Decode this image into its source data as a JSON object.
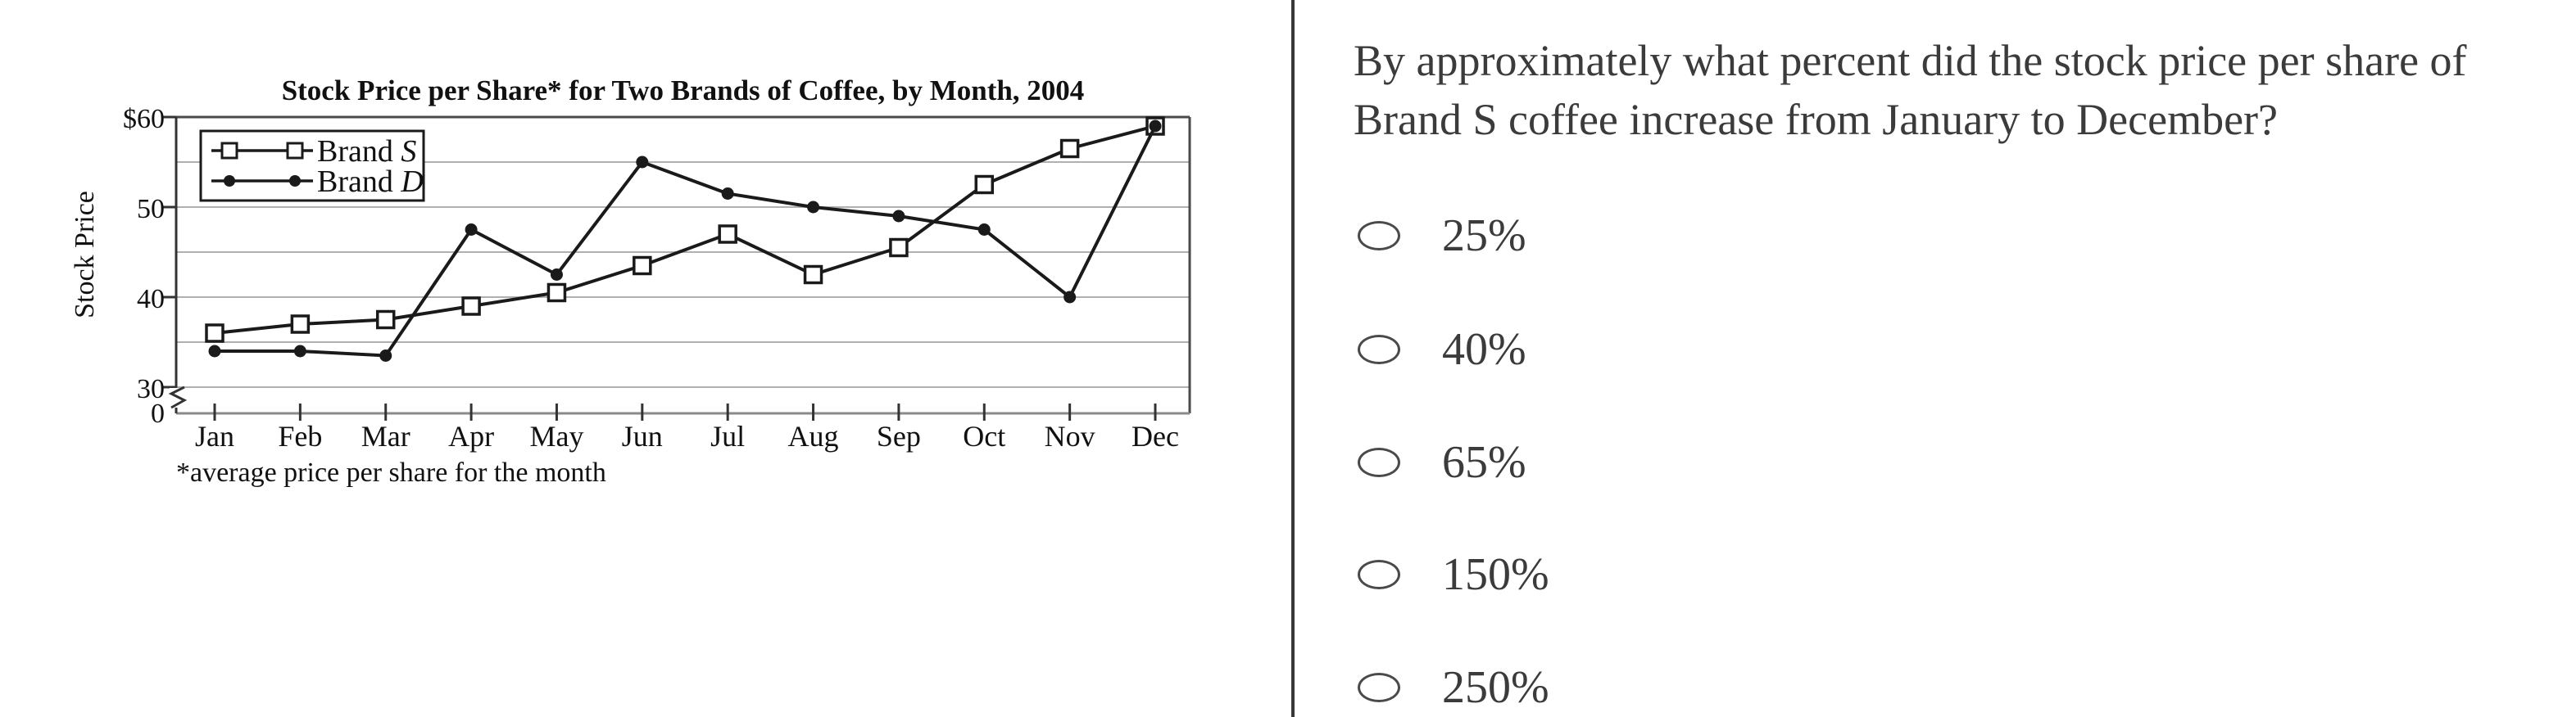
{
  "theme": {
    "text_color": "#3b3b3b",
    "divider_color": "#383838",
    "chart_line_color": "#1a1a1a",
    "gridline_color": "#b0b0b0",
    "background_color": "#ffffff"
  },
  "chart_data": {
    "type": "line",
    "title": "Stock Price per Share* for Two Brands of Coffee, by Month, 2004",
    "ylabel": "Stock Price",
    "footnote": "*average price per share for the month",
    "categories": [
      "Jan",
      "Feb",
      "Mar",
      "Apr",
      "May",
      "Jun",
      "Jul",
      "Aug",
      "Sep",
      "Oct",
      "Nov",
      "Dec"
    ],
    "series": [
      {
        "name": "Brand S",
        "marker": "open-square",
        "values": [
          36,
          37,
          37.5,
          39,
          40.5,
          43.5,
          47,
          42.5,
          45.5,
          52.5,
          56.5,
          59
        ]
      },
      {
        "name": "Brand D",
        "marker": "filled-circle",
        "values": [
          34,
          34,
          33.5,
          47.5,
          42.5,
          55,
          51.5,
          50,
          49,
          47.5,
          40,
          59
        ]
      }
    ],
    "y_axis": {
      "tick_labels": [
        "$60",
        "50",
        "40",
        "30",
        "0"
      ],
      "tick_values": [
        60,
        50,
        40,
        30,
        0
      ],
      "minor_gridline_step": 5,
      "value_range": [
        30,
        60
      ],
      "axis_break": true
    },
    "grid": true,
    "legend_position": "top-left"
  },
  "question": {
    "text": "By approximately what percent did the stock price per share of Brand S coffee increase from January to December?",
    "lines": [
      "By approximately what percent did the stock price per share of",
      "Brand S coffee increase from January to December?"
    ]
  },
  "options": {
    "style": "oval-radio",
    "items": [
      {
        "label": "25%",
        "selected": false
      },
      {
        "label": "40%",
        "selected": false
      },
      {
        "label": "65%",
        "selected": false
      },
      {
        "label": "150%",
        "selected": false
      },
      {
        "label": "250%",
        "selected": false
      }
    ]
  }
}
